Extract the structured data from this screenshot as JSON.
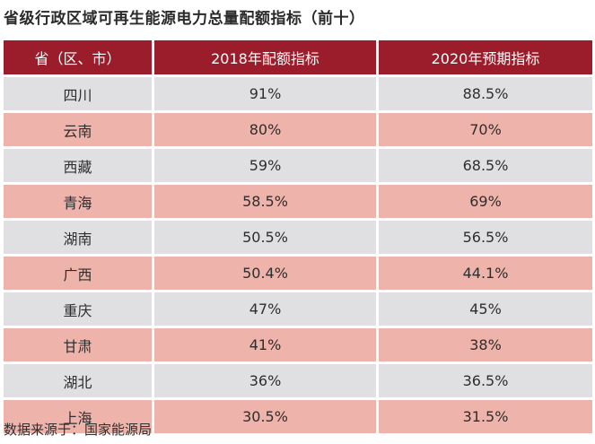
{
  "title": "省级行政区域可再生能源电力总量配额指标（前十）",
  "source": "数据来源于：国家能源局",
  "colors": {
    "header": "#9b1c2a",
    "row_light": "#e0e0e2",
    "row_pink": "#eeb3aa"
  },
  "chart_data": {
    "type": "table",
    "columns": [
      "省（区、市）",
      "2018年配额指标",
      "2020年预期指标"
    ],
    "rows": [
      [
        "四川",
        "91%",
        "88.5%"
      ],
      [
        "云南",
        "80%",
        "70%"
      ],
      [
        "西藏",
        "59%",
        "68.5%"
      ],
      [
        "青海",
        "58.5%",
        "69%"
      ],
      [
        "湖南",
        "50.5%",
        "56.5%"
      ],
      [
        "广西",
        "50.4%",
        "44.1%"
      ],
      [
        "重庆",
        "47%",
        "45%"
      ],
      [
        "甘肃",
        "41%",
        "38%"
      ],
      [
        "湖北",
        "36%",
        "36.5%"
      ],
      [
        "上海",
        "30.5%",
        "31.5%"
      ]
    ]
  }
}
